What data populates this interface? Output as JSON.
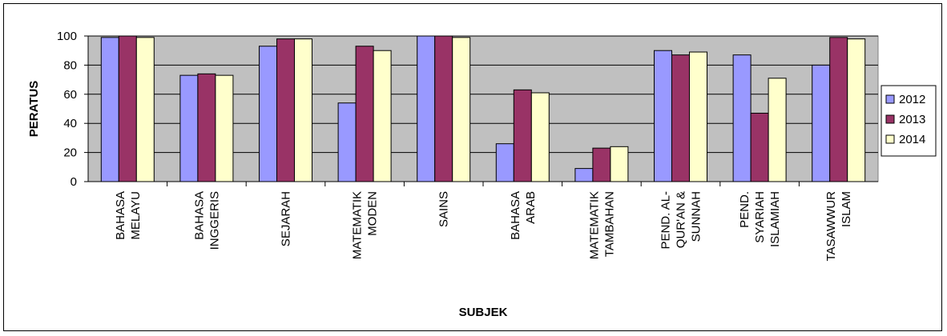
{
  "chart_data": {
    "type": "bar",
    "title": "",
    "xlabel": "SUBJEK",
    "ylabel": "PERATUS",
    "ylim": [
      0,
      100
    ],
    "yticks": [
      0,
      20,
      40,
      60,
      80,
      100
    ],
    "grid": true,
    "legend_position": "right",
    "plot_background": "#C0C0C0",
    "categories": [
      [
        "BAHASA",
        "MELAYU"
      ],
      [
        "BAHASA",
        "INGGERIS"
      ],
      [
        "SEJARAH"
      ],
      [
        "MATEMATIK",
        "MODEN"
      ],
      [
        "SAINS"
      ],
      [
        "BAHASA",
        "ARAB"
      ],
      [
        "MATEMATIK",
        "TAMBAHAN"
      ],
      [
        "PEND. AL-",
        "QUR'AN &",
        "SUNNAH"
      ],
      [
        "PEND.",
        "SYARIAH",
        "ISLAMIAH"
      ],
      [
        "TASAWWUR",
        "ISLAM"
      ]
    ],
    "series": [
      {
        "name": "2012",
        "color": "#9999FF",
        "values": [
          99,
          73,
          93,
          54,
          100,
          26,
          9,
          90,
          87,
          80
        ]
      },
      {
        "name": "2013",
        "color": "#993366",
        "values": [
          100,
          74,
          98,
          93,
          100,
          63,
          23,
          87,
          47,
          99
        ]
      },
      {
        "name": "2014",
        "color": "#FFFFCC",
        "values": [
          99,
          73,
          98,
          90,
          99,
          61,
          24,
          89,
          71,
          98
        ]
      }
    ]
  }
}
